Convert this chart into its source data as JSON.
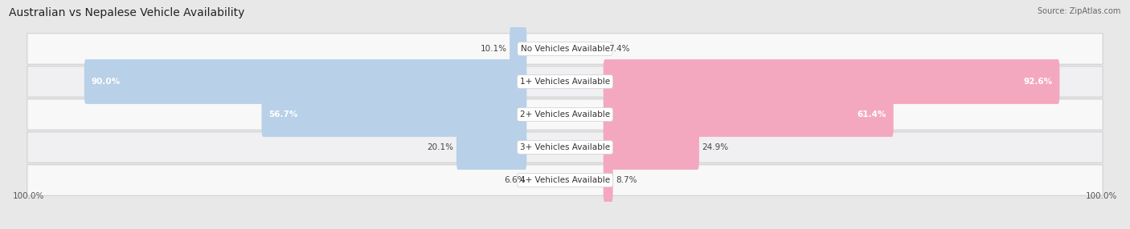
{
  "title": "Australian vs Nepalese Vehicle Availability",
  "source": "Source: ZipAtlas.com",
  "categories": [
    "No Vehicles Available",
    "1+ Vehicles Available",
    "2+ Vehicles Available",
    "3+ Vehicles Available",
    "4+ Vehicles Available"
  ],
  "australian_values": [
    10.1,
    90.0,
    56.7,
    20.1,
    6.6
  ],
  "nepalese_values": [
    7.4,
    92.6,
    61.4,
    24.9,
    8.7
  ],
  "max_value": 100.0,
  "australian_color": "#8ab4d8",
  "nepalese_color": "#f080a0",
  "australian_color_light": "#b8d0e8",
  "nepalese_color_light": "#f4a8c0",
  "bg_color": "#e8e8e8",
  "row_bg_even": "#f5f5f5",
  "row_bg_odd": "#ebebeb",
  "title_fontsize": 10,
  "label_fontsize": 7.5,
  "category_fontsize": 7.5,
  "legend_fontsize": 8,
  "axis_label_fontsize": 7.5
}
